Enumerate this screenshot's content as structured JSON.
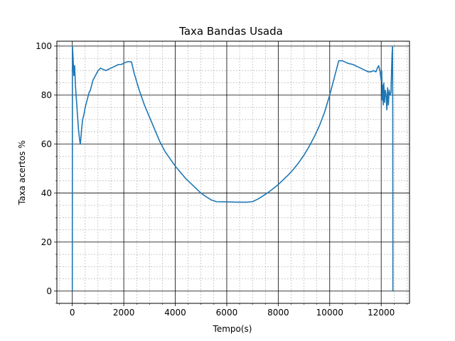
{
  "chart_data": {
    "type": "line",
    "title": "Taxa Bandas Usada",
    "xlabel": "Tempo(s)",
    "ylabel": "Taxa acertos %",
    "xlim": [
      -600,
      13100
    ],
    "ylim": [
      -5,
      102
    ],
    "xticks": [
      0,
      2000,
      4000,
      6000,
      8000,
      10000,
      12000
    ],
    "yticks": [
      0,
      20,
      40,
      60,
      80,
      100
    ],
    "x_minor_step": 500,
    "y_minor_step": 5,
    "grid": {
      "major": true,
      "minor": true
    },
    "legend": "none",
    "series": [
      {
        "color": "#1f77b4",
        "points": [
          [
            0,
            0
          ],
          [
            2,
            60
          ],
          [
            5,
            100
          ],
          [
            30,
            95
          ],
          [
            60,
            88
          ],
          [
            90,
            92
          ],
          [
            120,
            84
          ],
          [
            160,
            78
          ],
          [
            200,
            72
          ],
          [
            240,
            66
          ],
          [
            280,
            62
          ],
          [
            310,
            60
          ],
          [
            330,
            62
          ],
          [
            360,
            66
          ],
          [
            400,
            70
          ],
          [
            450,
            72
          ],
          [
            500,
            75
          ],
          [
            550,
            77
          ],
          [
            600,
            79
          ],
          [
            650,
            81
          ],
          [
            700,
            82
          ],
          [
            750,
            84
          ],
          [
            800,
            86
          ],
          [
            850,
            87
          ],
          [
            900,
            88
          ],
          [
            950,
            89
          ],
          [
            1000,
            90
          ],
          [
            1100,
            91
          ],
          [
            1200,
            90.5
          ],
          [
            1300,
            90
          ],
          [
            1400,
            90.5
          ],
          [
            1500,
            91
          ],
          [
            1600,
            91.5
          ],
          [
            1700,
            92
          ],
          [
            1800,
            92.5
          ],
          [
            1900,
            92.5
          ],
          [
            2000,
            93
          ],
          [
            2100,
            93.5
          ],
          [
            2200,
            93.7
          ],
          [
            2300,
            93.5
          ],
          [
            2400,
            89
          ],
          [
            2600,
            82
          ],
          [
            2800,
            76
          ],
          [
            3000,
            71
          ],
          [
            3200,
            66
          ],
          [
            3400,
            61
          ],
          [
            3600,
            57
          ],
          [
            3800,
            54
          ],
          [
            4000,
            51
          ],
          [
            4200,
            48.5
          ],
          [
            4400,
            46
          ],
          [
            4600,
            44
          ],
          [
            4800,
            42
          ],
          [
            5000,
            40
          ],
          [
            5200,
            38.5
          ],
          [
            5400,
            37.2
          ],
          [
            5600,
            36.5
          ],
          [
            6000,
            36.4
          ],
          [
            6400,
            36.3
          ],
          [
            6800,
            36.3
          ],
          [
            7000,
            36.5
          ],
          [
            7200,
            37.5
          ],
          [
            7400,
            38.8
          ],
          [
            7600,
            40.2
          ],
          [
            7800,
            41.8
          ],
          [
            8000,
            43.5
          ],
          [
            8200,
            45.5
          ],
          [
            8400,
            47.5
          ],
          [
            8600,
            49.8
          ],
          [
            8800,
            52.5
          ],
          [
            9000,
            55.5
          ],
          [
            9200,
            59
          ],
          [
            9400,
            63
          ],
          [
            9600,
            67.5
          ],
          [
            9800,
            73
          ],
          [
            10000,
            80
          ],
          [
            10100,
            84
          ],
          [
            10200,
            88
          ],
          [
            10300,
            92
          ],
          [
            10350,
            94
          ],
          [
            10500,
            94
          ],
          [
            10700,
            93
          ],
          [
            10900,
            92.5
          ],
          [
            11100,
            91.5
          ],
          [
            11300,
            90.5
          ],
          [
            11500,
            89.5
          ],
          [
            11600,
            89.5
          ],
          [
            11700,
            90
          ],
          [
            11800,
            89.5
          ],
          [
            11850,
            91
          ],
          [
            11900,
            92
          ],
          [
            11950,
            90
          ],
          [
            12000,
            86
          ],
          [
            12020,
            90
          ],
          [
            12040,
            78
          ],
          [
            12060,
            84
          ],
          [
            12080,
            76
          ],
          [
            12100,
            85
          ],
          [
            12130,
            77
          ],
          [
            12160,
            82
          ],
          [
            12190,
            80
          ],
          [
            12220,
            74
          ],
          [
            12250,
            83
          ],
          [
            12280,
            76
          ],
          [
            12310,
            82
          ],
          [
            12340,
            80
          ],
          [
            12380,
            81
          ],
          [
            12420,
            96
          ],
          [
            12440,
            100
          ],
          [
            12450,
            70
          ],
          [
            12455,
            0
          ]
        ]
      }
    ]
  }
}
